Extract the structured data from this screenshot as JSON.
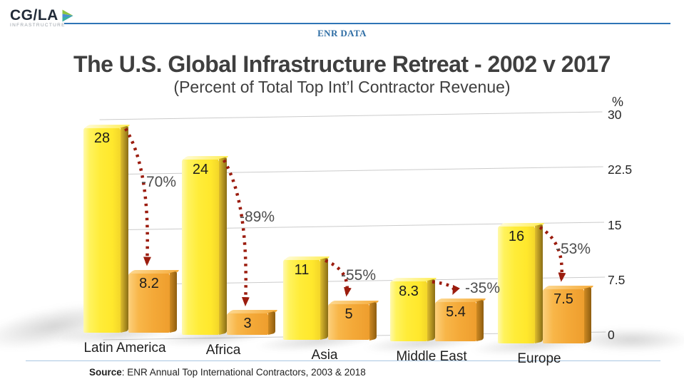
{
  "header": {
    "logo_text": "CG/LA",
    "logo_subtext": "INFRASTRUCTURE",
    "kicker": "ENR DATA"
  },
  "title": "The U.S. Global Infrastructure Retreat - 2002 v 2017",
  "subtitle": "(Percent of Total Top Int’l Contractor Revenue)",
  "source": {
    "label": "Source",
    "text": ":  ENR Annual Top International Contractors, 2003 & 2018"
  },
  "chart_data": {
    "type": "bar",
    "title": "The U.S. Global Infrastructure Retreat - 2002 v 2017",
    "subtitle": "(Percent of Total Top Int’l Contractor Revenue)",
    "categories": [
      "Latin America",
      "Africa",
      "Asia",
      "Middle East",
      "Europe"
    ],
    "series": [
      {
        "name": "2002",
        "values": [
          28,
          24,
          11,
          8.3,
          16
        ],
        "labels": [
          "28",
          "24",
          "11",
          "8.3",
          "16"
        ],
        "color": "#ffe82c"
      },
      {
        "name": "2017",
        "values": [
          8.2,
          3,
          5,
          5.4,
          7.5
        ],
        "labels": [
          "8.2",
          "3",
          "5",
          "5.4",
          "7.5"
        ],
        "color": "#f4a938"
      }
    ],
    "change_labels": [
      "-70%",
      "-89%",
      "-55%",
      "-35%",
      "-53%"
    ],
    "ylabel": "%",
    "xlabel": "",
    "ylim": [
      0,
      30
    ],
    "yticks": [
      30,
      22.5,
      15,
      7.5,
      0
    ],
    "ytick_labels": [
      "30",
      "22.5",
      "15",
      "7.5",
      "0"
    ],
    "grid": true,
    "axis_side": "right",
    "arrow_color": "#9b1c0e"
  }
}
